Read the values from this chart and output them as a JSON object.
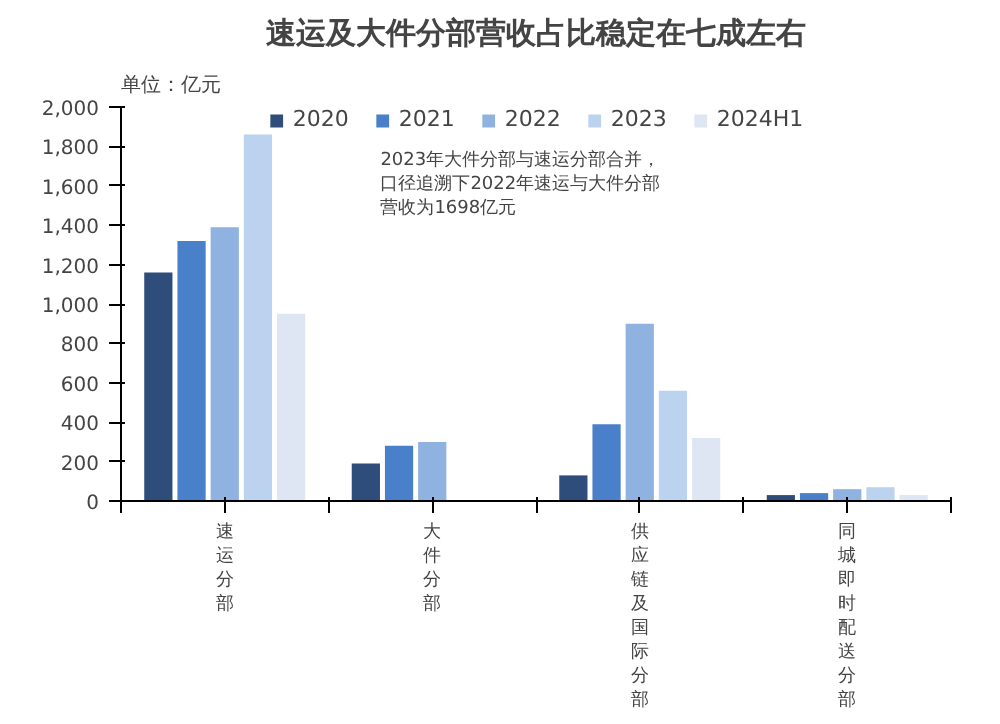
{
  "chart_data": {
    "type": "bar",
    "title": "速运及大件分部营收占比稳定在七成左右",
    "ylabel": "单位：亿元",
    "categories": [
      "速运分部",
      "大件分部",
      "供应链及国际分部",
      "同城即时配送分部"
    ],
    "series": [
      {
        "name": "2020",
        "color": "#2e4d7b",
        "values": [
          1160,
          190,
          130,
          30
        ]
      },
      {
        "name": "2021",
        "color": "#4a7fc9",
        "values": [
          1320,
          280,
          390,
          40
        ]
      },
      {
        "name": "2022",
        "color": "#8fb2e0",
        "values": [
          1390,
          300,
          900,
          60
        ]
      },
      {
        "name": "2023",
        "color": "#bcd3ef",
        "values": [
          1860,
          null,
          560,
          70
        ]
      },
      {
        "name": "2024H1",
        "color": "#dde6f2",
        "values": [
          950,
          null,
          320,
          30
        ]
      }
    ],
    "ylim": [
      0,
      2000
    ],
    "yticks": [
      {
        "value": 0,
        "label": "0"
      },
      {
        "value": 200,
        "label": "200"
      },
      {
        "value": 400,
        "label": "400"
      },
      {
        "value": 600,
        "label": "600"
      },
      {
        "value": 800,
        "label": "800"
      },
      {
        "value": 1000,
        "label": "1,000"
      },
      {
        "value": 1200,
        "label": "1,200"
      },
      {
        "value": 1400,
        "label": "1,400"
      },
      {
        "value": 1600,
        "label": "1,600"
      },
      {
        "value": 1800,
        "label": "1,800"
      },
      {
        "value": 2000,
        "label": "2,000"
      }
    ],
    "annotations": [
      "2023年大件分部与速运分部合并，口径追溯下2022年速运与大件分部营收为1698亿元"
    ],
    "legend": "top",
    "grid": false
  }
}
